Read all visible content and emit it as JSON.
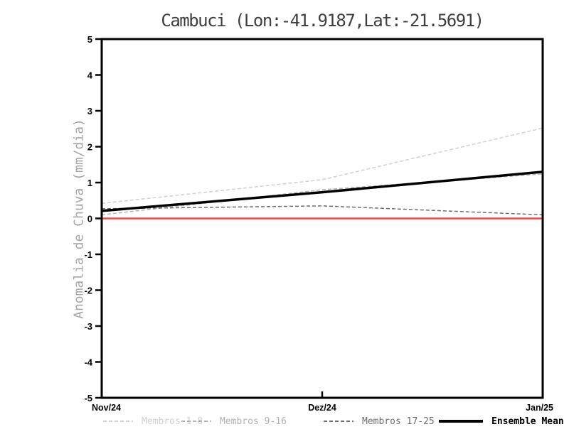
{
  "chart_data": {
    "type": "line",
    "title": "Cambuci (Lon:-41.9187,Lat:-21.5691)",
    "ylabel": "Anomalia de Chuva (mm/dia)",
    "xlabel": "",
    "categories": [
      "Nov/24",
      "Dez/24",
      "Jan/25"
    ],
    "ylim": [
      -5,
      5
    ],
    "yticks": [
      5,
      4,
      3,
      2,
      1,
      0,
      -1,
      -2,
      -3,
      -4,
      -5
    ],
    "grid": false,
    "legend_position": "bottom",
    "series": [
      {
        "name": "Membros 1-8",
        "color": "#d0d0d0",
        "style": "dashed",
        "width": 1.5,
        "values": [
          0.42,
          1.08,
          2.52
        ]
      },
      {
        "name": "Membros 9-16",
        "color": "#b2b2b2",
        "style": "dashed",
        "width": 1.5,
        "values": [
          0.1,
          0.8,
          1.24
        ]
      },
      {
        "name": "Membros 17-25",
        "color": "#6e6e6e",
        "style": "dashed",
        "width": 1.5,
        "values": [
          0.27,
          0.35,
          0.1
        ]
      },
      {
        "name": "Ensemble Mean",
        "color": "#000000",
        "style": "solid",
        "width": 3.5,
        "values": [
          0.21,
          0.73,
          1.3
        ]
      }
    ],
    "reference_line": {
      "value": 0,
      "color": "#f64646",
      "width": 2.5
    },
    "frame_color": "#000000",
    "tick_label_color": "#000000",
    "title_color": "#3f3f3f",
    "ylabel_color": "#a5a5a5"
  }
}
